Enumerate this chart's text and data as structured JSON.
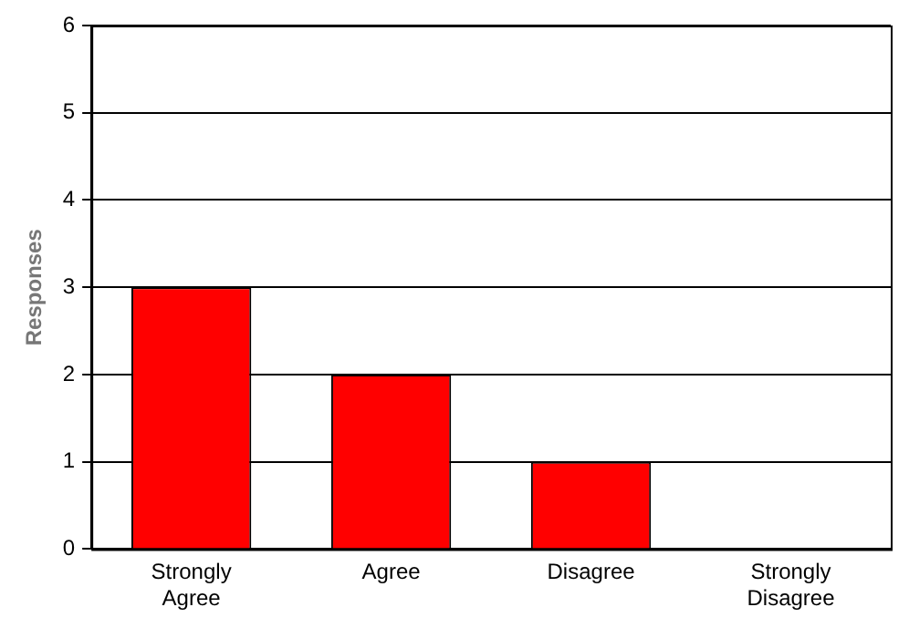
{
  "chart_data": {
    "type": "bar",
    "ylabel": "Responses",
    "categories": [
      "Strongly Agree",
      "Agree",
      "Disagree",
      "Strongly Disagree"
    ],
    "values": [
      3,
      2,
      1,
      0
    ],
    "color": "#ff0000",
    "ylim": [
      0,
      6
    ],
    "yticks": [
      0,
      1,
      2,
      3,
      4,
      5,
      6
    ],
    "grid": "y"
  }
}
